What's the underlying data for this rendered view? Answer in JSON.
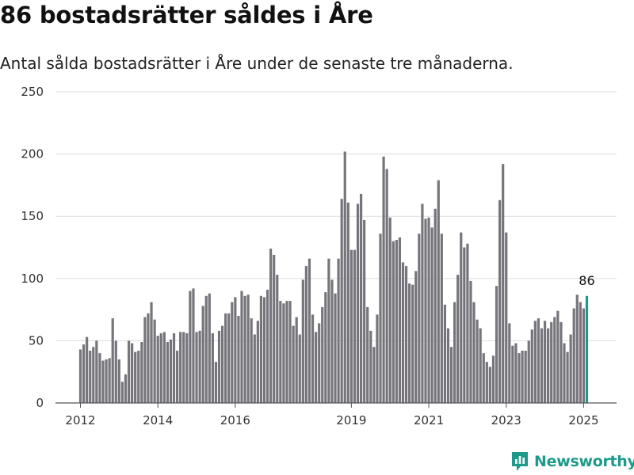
{
  "title": "86 bostadsrätter såldes i Åre",
  "subtitle": "Antal sålda bostadsrätter i Åre under de senaste tre månaderna.",
  "brand": {
    "name": "Newsworthy",
    "icon": "bar-chart-icon",
    "color": "#1e9a8a"
  },
  "colors": {
    "bar": "#76757b",
    "highlight": "#1e9a8a",
    "grid": "#dddddd",
    "axis": "#555555"
  },
  "chart_data": {
    "type": "bar",
    "title": "",
    "xlabel": "",
    "ylabel": "",
    "ylim": [
      0,
      250
    ],
    "yticks": [
      0,
      50,
      100,
      150,
      200,
      250
    ],
    "ytick_labels": [
      "0",
      "50",
      "100",
      "150",
      "200",
      "250"
    ],
    "xticks": [
      {
        "label": "2012",
        "index": 0
      },
      {
        "label": "2014",
        "index": 24
      },
      {
        "label": "2016",
        "index": 48
      },
      {
        "label": "2019",
        "index": 84
      },
      {
        "label": "2021",
        "index": 108
      },
      {
        "label": "2023",
        "index": 132
      },
      {
        "label": "2025",
        "index": 156
      }
    ],
    "grid": true,
    "highlight_index": 157,
    "highlight_label": "86",
    "values": [
      43,
      47,
      53,
      42,
      45,
      50,
      40,
      34,
      35,
      36,
      68,
      50,
      35,
      17,
      23,
      50,
      48,
      41,
      42,
      49,
      69,
      72,
      81,
      67,
      54,
      56,
      57,
      49,
      51,
      56,
      42,
      57,
      57,
      56,
      90,
      92,
      57,
      58,
      78,
      86,
      88,
      56,
      33,
      58,
      62,
      72,
      72,
      81,
      85,
      70,
      90,
      86,
      87,
      68,
      55,
      66,
      86,
      85,
      91,
      124,
      119,
      103,
      82,
      80,
      82,
      82,
      62,
      69,
      55,
      99,
      110,
      116,
      71,
      57,
      64,
      77,
      89,
      116,
      99,
      88,
      116,
      164,
      202,
      161,
      123,
      123,
      160,
      168,
      147,
      77,
      58,
      45,
      71,
      136,
      198,
      188,
      149,
      130,
      131,
      133,
      113,
      110,
      96,
      95,
      106,
      136,
      160,
      148,
      149,
      141,
      156,
      179,
      136,
      79,
      60,
      45,
      81,
      103,
      137,
      125,
      128,
      98,
      81,
      67,
      60,
      40,
      33,
      29,
      38,
      94,
      163,
      192,
      137,
      64,
      46,
      48,
      40,
      42,
      42,
      50,
      59,
      66,
      68,
      60,
      66,
      60,
      65,
      69,
      74,
      65,
      48,
      41,
      55,
      76,
      87,
      81,
      76,
      86
    ]
  }
}
